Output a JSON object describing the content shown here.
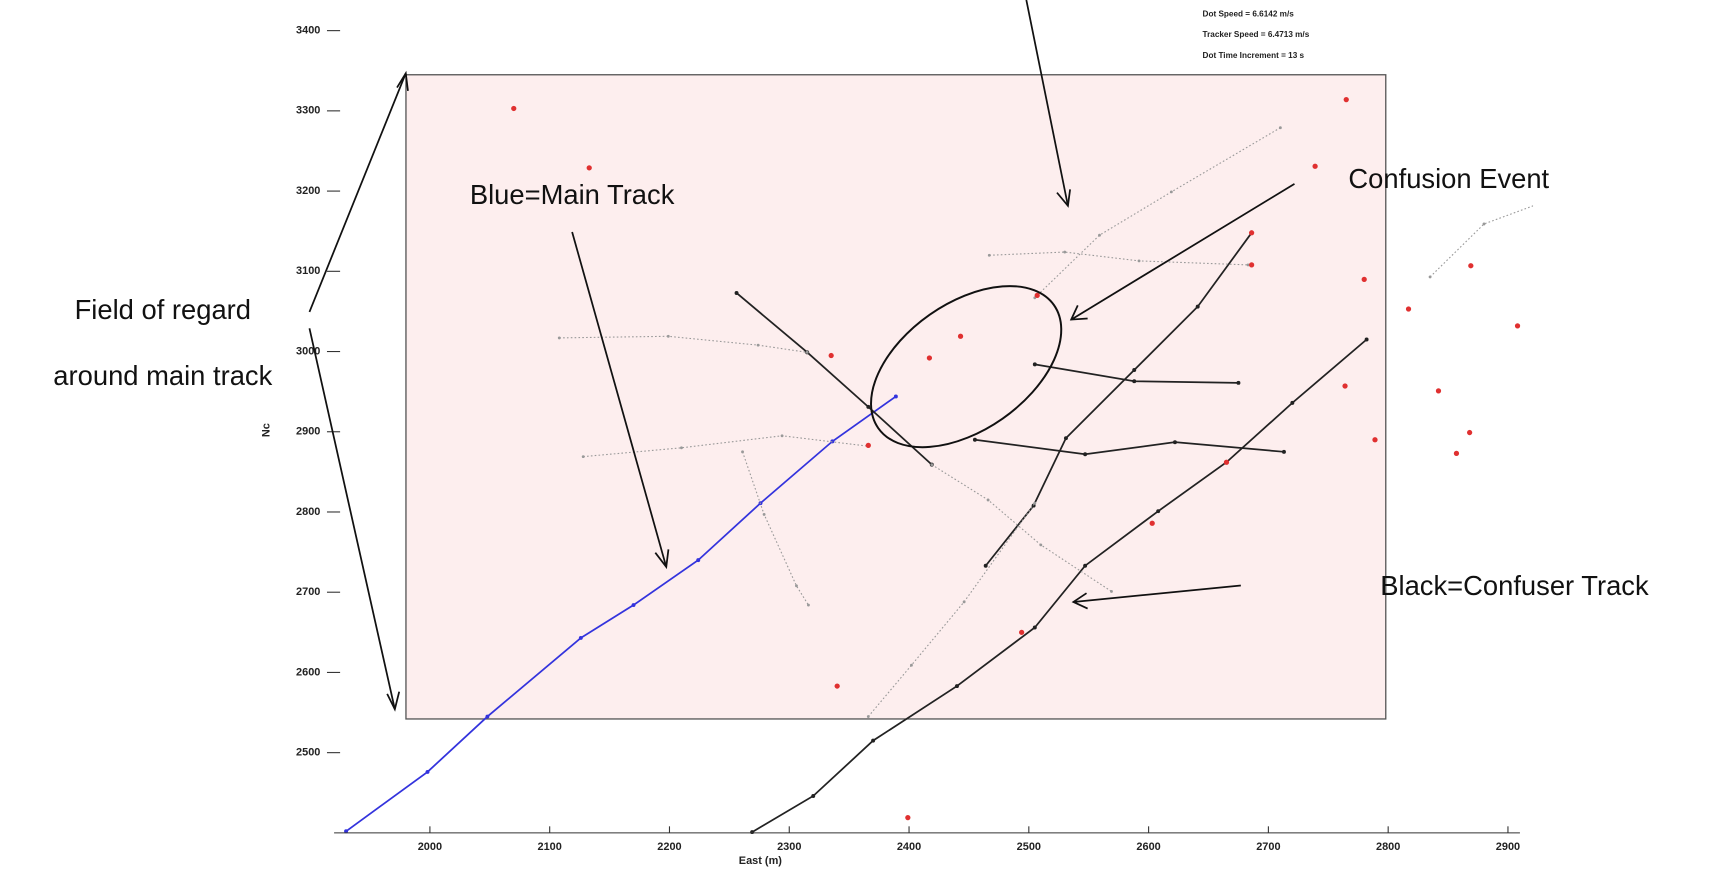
{
  "chart_data": {
    "type": "line",
    "xlabel": "East (m)",
    "ylabel": "Nc",
    "info": [
      "Dot Speed = 6.6142 m/s",
      "Tracker Speed = 6.4713 m/s",
      "Dot Time Increment = 13 s"
    ],
    "annotations": [
      "Blue=Main Track",
      "Confusion Event",
      "Field of regard",
      "around main track",
      "Black=Confuser Track"
    ],
    "xlim": [
      1920,
      2910
    ],
    "ylim": [
      2400,
      3430
    ],
    "xticks": [
      2000,
      2100,
      2200,
      2300,
      2400,
      2500,
      2600,
      2700,
      2800,
      2900
    ],
    "yticks": [
      2500,
      2600,
      2700,
      2800,
      2900,
      3000,
      3100,
      3200,
      3300,
      3400
    ],
    "field_of_regard": {
      "xlim": [
        1980,
        2798
      ],
      "ylim": [
        2542,
        3345
      ],
      "color": "#fdeeee"
    },
    "series": [
      {
        "color": "#3333dd",
        "style": "solid",
        "x": [
          1930,
          1998,
          2048,
          2126,
          2170,
          2224,
          2276,
          2336,
          2389
        ],
        "y": [
          2402,
          2476,
          2545,
          2643,
          2684,
          2740,
          2811,
          2888,
          2944
        ]
      },
      {
        "color": "#222222",
        "style": "solid",
        "x": [
          2269,
          2320,
          2370,
          2440,
          2505,
          2547,
          2608,
          2665,
          2720,
          2782
        ],
        "y": [
          2401,
          2446,
          2515,
          2583,
          2656,
          2733,
          2801,
          2862,
          2936,
          3015
        ]
      },
      {
        "color": "#222222",
        "style": "solid",
        "x": [
          2256,
          2315,
          2366,
          2419
        ],
        "y": [
          3073,
          2999,
          2931,
          2859
        ]
      },
      {
        "color": "#222222",
        "style": "solid",
        "x": [
          2464,
          2504,
          2531,
          2588,
          2641,
          2686
        ],
        "y": [
          2733,
          2808,
          2892,
          2977,
          3056,
          3148
        ]
      },
      {
        "color": "#222222",
        "style": "solid",
        "x": [
          2505,
          2588,
          2675
        ],
        "y": [
          2984,
          2963,
          2961
        ]
      },
      {
        "color": "#222222",
        "style": "solid",
        "x": [
          2455,
          2547,
          2622,
          2713
        ],
        "y": [
          2890,
          2872,
          2887,
          2875
        ]
      },
      {
        "color": "#999999",
        "style": "dotted",
        "x": [
          2108,
          2199,
          2274,
          2315
        ],
        "y": [
          3017,
          3019,
          3008,
          2999
        ]
      },
      {
        "color": "#999999",
        "style": "dotted",
        "x": [
          2128,
          2210,
          2294,
          2366
        ],
        "y": [
          2869,
          2880,
          2895,
          2882
        ]
      },
      {
        "color": "#999999",
        "style": "dotted",
        "x": [
          2261,
          2279,
          2306,
          2316
        ],
        "y": [
          2875,
          2797,
          2708,
          2684
        ]
      },
      {
        "color": "#999999",
        "style": "dotted",
        "x": [
          2467,
          2530,
          2592,
          2683
        ],
        "y": [
          3120,
          3124,
          3113,
          3108
        ]
      },
      {
        "color": "#999999",
        "style": "dotted",
        "x": [
          2505,
          2559,
          2619,
          2710
        ],
        "y": [
          3067,
          3145,
          3199,
          3279
        ]
      },
      {
        "color": "#999999",
        "style": "dotted",
        "x": [
          2366,
          2402,
          2446,
          2505
        ],
        "y": [
          2545,
          2609,
          2688,
          2811
        ]
      },
      {
        "color": "#999999",
        "style": "dotted",
        "x": [
          2419,
          2466,
          2510,
          2569
        ],
        "y": [
          2859,
          2815,
          2759,
          2701
        ]
      },
      {
        "color": "#999999",
        "style": "dotted",
        "x": [
          2835,
          2880,
          2929
        ],
        "y": [
          3093,
          3159,
          3186
        ]
      },
      {
        "color": "#e03030",
        "style": "markers",
        "x": [
          2070,
          2133,
          2335,
          2366,
          2417,
          2443,
          2507,
          2686,
          2686,
          2780,
          2869,
          2908,
          2764,
          2842,
          2789,
          2868,
          2857,
          2494,
          2340,
          2399,
          2765,
          2739,
          2817,
          2603,
          2665
        ],
        "y": [
          3303,
          3229,
          2995,
          2883,
          2992,
          3019,
          3070,
          3148,
          3108,
          3090,
          3107,
          3032,
          2957,
          2951,
          2890,
          2899,
          2873,
          2650,
          2583,
          2419,
          3314,
          3231,
          3053,
          2786,
          2862
        ]
      }
    ]
  }
}
